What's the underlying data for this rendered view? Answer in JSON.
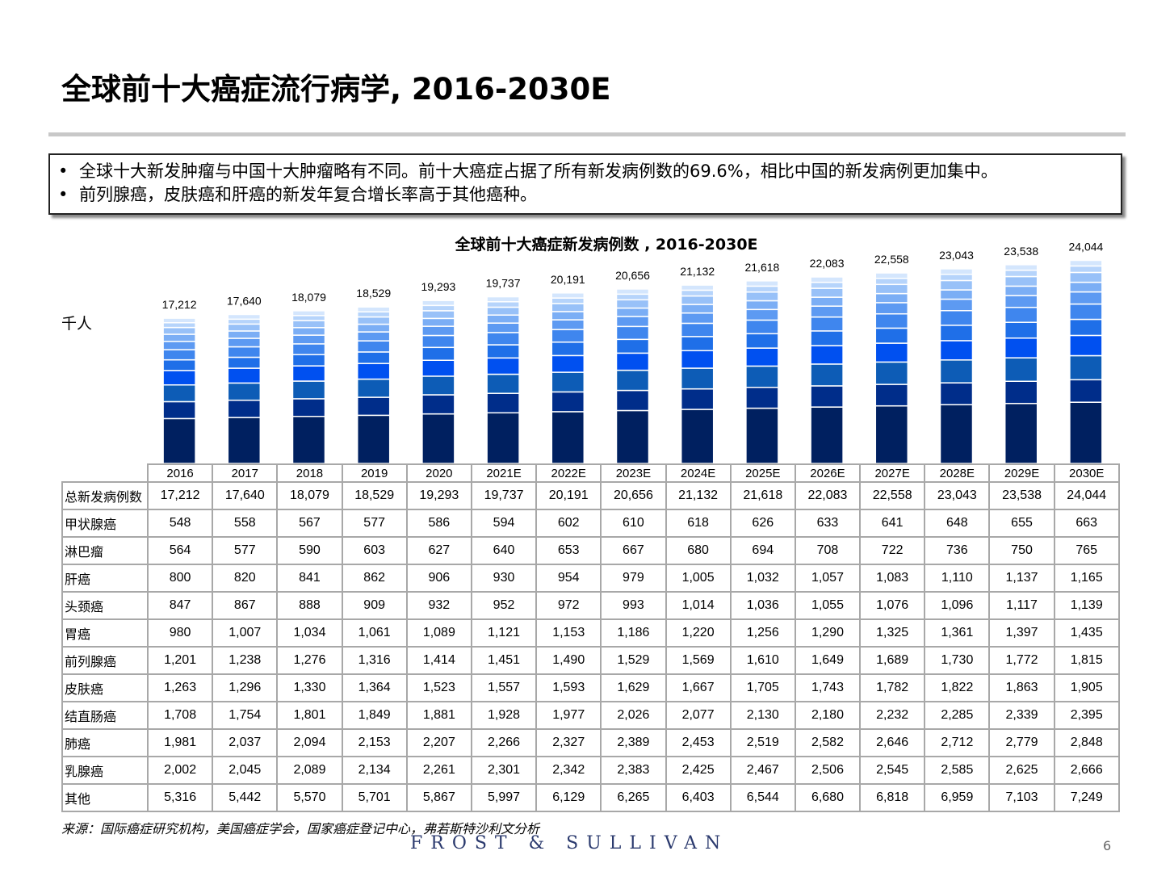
{
  "title": "全球前十大癌症流行病学, 2016-2030E",
  "summary": {
    "bullet_char": "•",
    "items": [
      "全球十大新发肿瘤与中国十大肿瘤略有不同。前十大癌症占据了所有新发病例数的69.6%，相比中国的新发病例更加集中。",
      "前列腺癌，皮肤癌和肝癌的新发年复合增长率高于其他癌种。"
    ]
  },
  "unit_label": "千人",
  "source": "来源：国际癌症研究机构，美国癌症学会，国家癌症登记中心，弗若斯特沙利文分析",
  "brand": "FROST & SULLIVAN",
  "page_number": "6",
  "colors": {
    "segments": [
      "#002060",
      "#002d8a",
      "#0d5cb6",
      "#0050f0",
      "#1f6fe8",
      "#3f86ee",
      "#5d9af2",
      "#7baef5",
      "#98c1f8",
      "#b6d4fb",
      "#d4e6fd",
      "#ecf4ff"
    ],
    "table_border": "#a8a8a8"
  },
  "chart_data": {
    "type": "bar",
    "stacked": true,
    "title": "全球前十大癌症新发病例数 , 2016-2030E",
    "ylabel": "千人",
    "categories": [
      "2016",
      "2017",
      "2018",
      "2019",
      "2020",
      "2021E",
      "2022E",
      "2023E",
      "2024E",
      "2025E",
      "2026E",
      "2027E",
      "2028E",
      "2029E",
      "2030E"
    ],
    "totals_label": "总新发病例数",
    "totals": [
      17212,
      17640,
      18079,
      18529,
      19293,
      19737,
      20191,
      20656,
      21132,
      21618,
      22083,
      22558,
      23043,
      23538,
      24044
    ],
    "series": [
      {
        "name": "甲状腺癌",
        "values": [
          548,
          558,
          567,
          577,
          586,
          594,
          602,
          610,
          618,
          626,
          633,
          641,
          648,
          655,
          663
        ]
      },
      {
        "name": "淋巴瘤",
        "values": [
          564,
          577,
          590,
          603,
          627,
          640,
          653,
          667,
          680,
          694,
          708,
          722,
          736,
          750,
          765
        ]
      },
      {
        "name": "肝癌",
        "values": [
          800,
          820,
          841,
          862,
          906,
          930,
          954,
          979,
          1005,
          1032,
          1057,
          1083,
          1110,
          1137,
          1165
        ]
      },
      {
        "name": "头颈癌",
        "values": [
          847,
          867,
          888,
          909,
          932,
          952,
          972,
          993,
          1014,
          1036,
          1055,
          1076,
          1096,
          1117,
          1139
        ]
      },
      {
        "name": "胃癌",
        "values": [
          980,
          1007,
          1034,
          1061,
          1089,
          1121,
          1153,
          1186,
          1220,
          1256,
          1290,
          1325,
          1361,
          1397,
          1435
        ]
      },
      {
        "name": "前列腺癌",
        "values": [
          1201,
          1238,
          1276,
          1316,
          1414,
          1451,
          1490,
          1529,
          1569,
          1610,
          1649,
          1689,
          1730,
          1772,
          1815
        ]
      },
      {
        "name": "皮肤癌",
        "values": [
          1263,
          1296,
          1330,
          1364,
          1523,
          1557,
          1593,
          1629,
          1667,
          1705,
          1743,
          1782,
          1822,
          1863,
          1905
        ]
      },
      {
        "name": "结直肠癌",
        "values": [
          1708,
          1754,
          1801,
          1849,
          1881,
          1928,
          1977,
          2026,
          2077,
          2130,
          2180,
          2232,
          2285,
          2339,
          2395
        ]
      },
      {
        "name": "肺癌",
        "values": [
          1981,
          2037,
          2094,
          2153,
          2207,
          2266,
          2327,
          2389,
          2453,
          2519,
          2582,
          2646,
          2712,
          2779,
          2848
        ]
      },
      {
        "name": "乳腺癌",
        "values": [
          2002,
          2045,
          2089,
          2134,
          2261,
          2301,
          2342,
          2383,
          2425,
          2467,
          2506,
          2545,
          2585,
          2625,
          2666
        ]
      },
      {
        "name": "其他",
        "values": [
          5316,
          5442,
          5570,
          5701,
          5867,
          5997,
          6129,
          6265,
          6403,
          6544,
          6680,
          6818,
          6959,
          7103,
          7249
        ]
      }
    ]
  }
}
